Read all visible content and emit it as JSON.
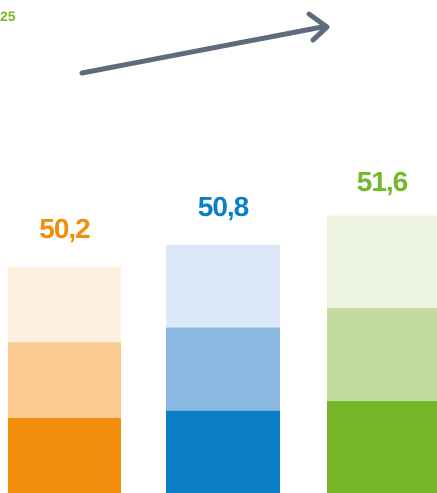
{
  "corner_label": "25",
  "colors": {
    "orange": [
      "#F28E0C",
      "#FBCB8F",
      "#FDF0E0"
    ],
    "blue": [
      "#0A7FC8",
      "#8AB9E2",
      "#DCE8F7"
    ],
    "green": [
      "#76B72A",
      "#C2DC9F",
      "#ECF3E1"
    ],
    "arrow": "#5E6A7D"
  },
  "chart_data": {
    "type": "bar",
    "categories": [
      "",
      "",
      ""
    ],
    "values": [
      50.2,
      50.8,
      51.6
    ],
    "labels": [
      "50,2",
      "50,8",
      "51,6"
    ],
    "label_colors": [
      "#F28E0C",
      "#0A7FC8",
      "#76B72A"
    ],
    "stacked_segments": 3,
    "trend_arrow": "up",
    "ylim": [
      44,
      53
    ]
  }
}
